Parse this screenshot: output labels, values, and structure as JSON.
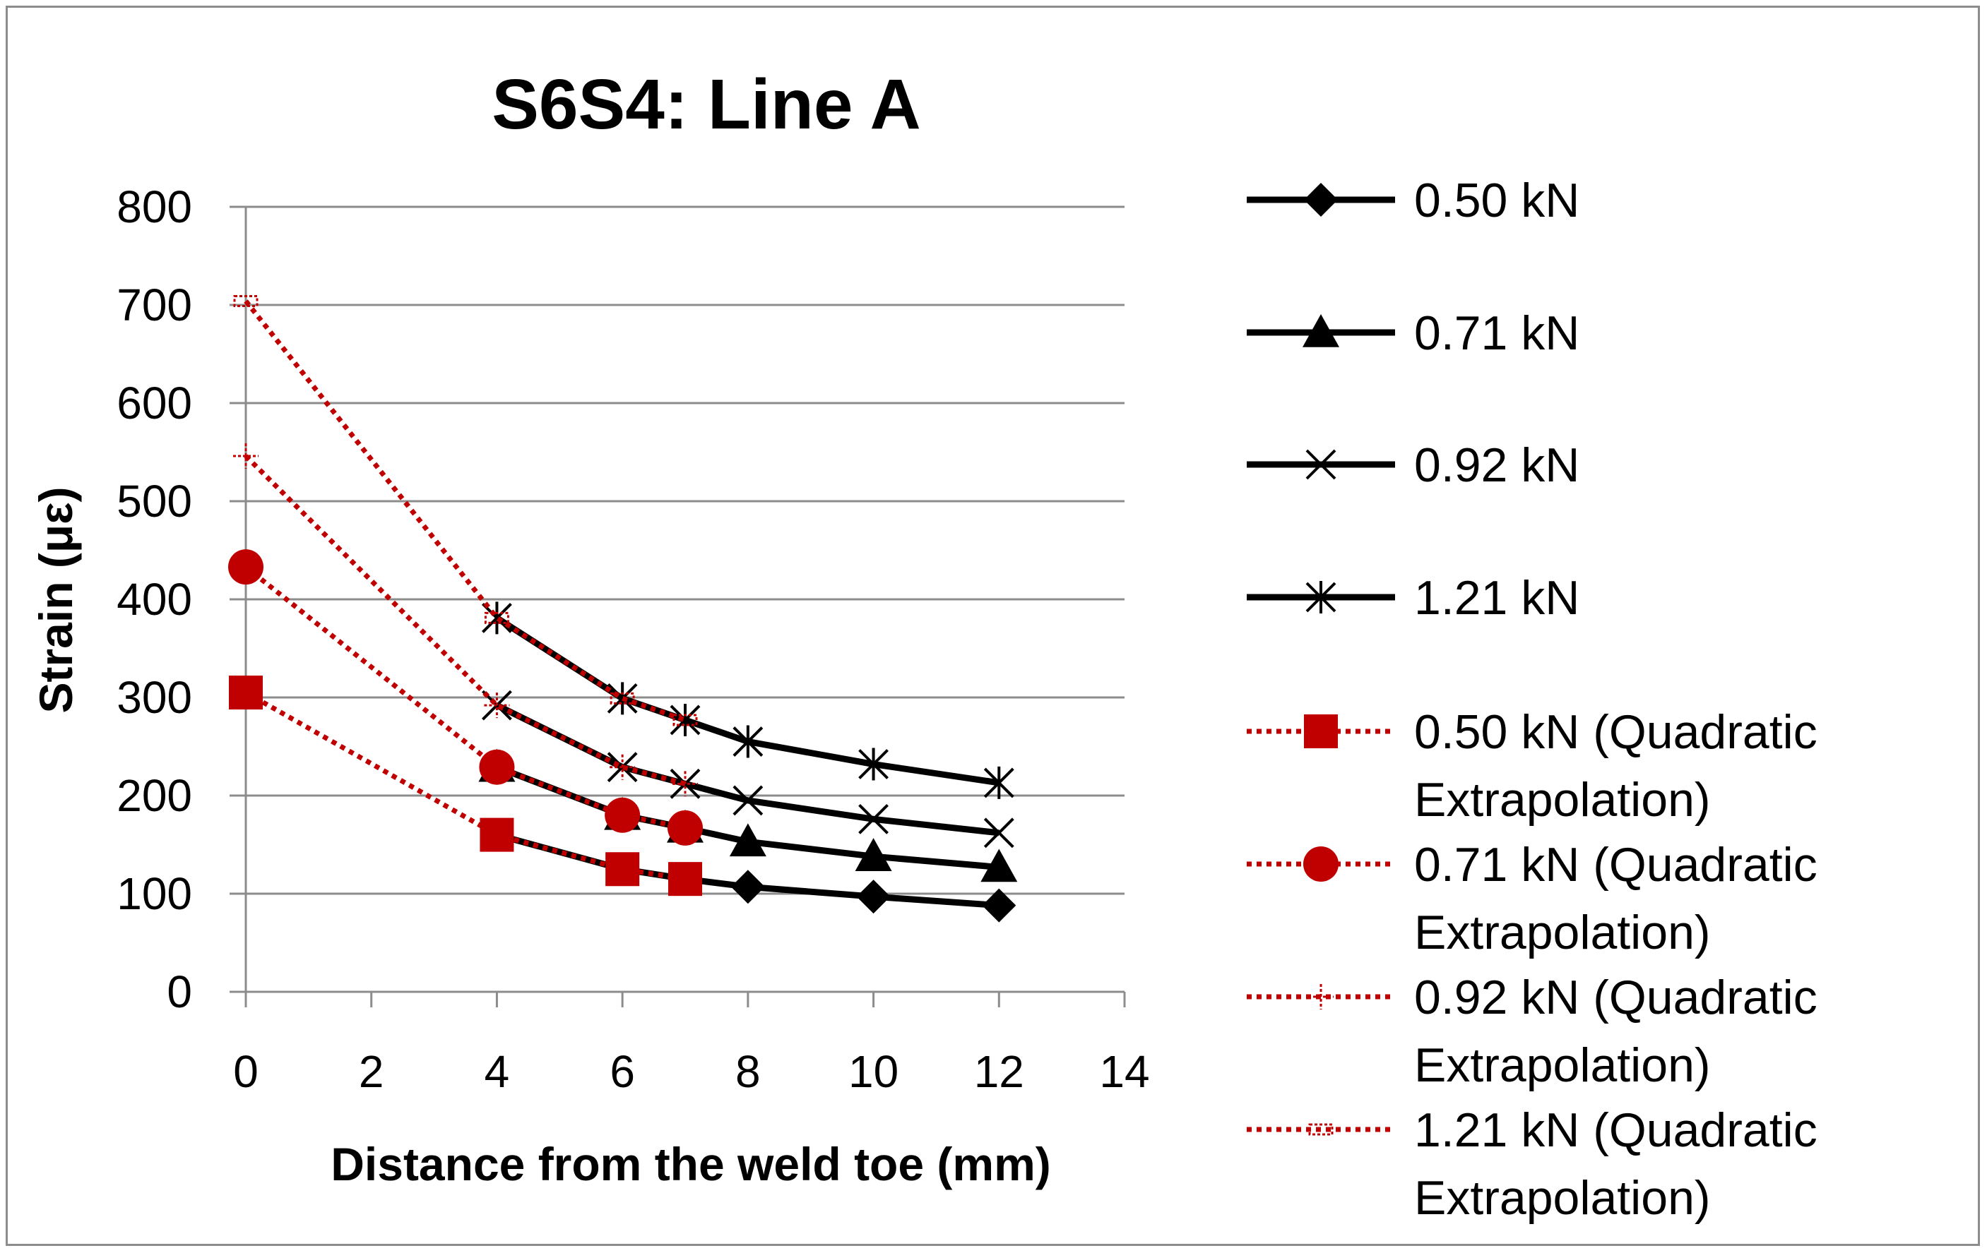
{
  "chart_data": {
    "type": "line",
    "title": "S6S4: Line A",
    "xlabel": "Distance from the weld toe (mm)",
    "ylabel": "Strain (με)",
    "xlim": [
      0,
      14
    ],
    "ylim": [
      0,
      800
    ],
    "xticks": [
      0,
      2,
      4,
      6,
      8,
      10,
      12,
      14
    ],
    "yticks": [
      0,
      100,
      200,
      300,
      400,
      500,
      600,
      700,
      800
    ],
    "grid": "horizontal",
    "legend_position": "right",
    "series": [
      {
        "name": "0.50 kN",
        "legend_lines": [
          "0.50 kN"
        ],
        "style": "solid",
        "color": "#000000",
        "marker": "diamond",
        "x": [
          4,
          6,
          7,
          8,
          10,
          12
        ],
        "y": [
          160,
          125,
          115,
          107,
          97,
          88
        ]
      },
      {
        "name": "0.71 kN",
        "legend_lines": [
          "0.71 kN"
        ],
        "style": "solid",
        "color": "#000000",
        "marker": "triangle",
        "x": [
          4,
          6,
          7,
          8,
          10,
          12
        ],
        "y": [
          229,
          180,
          167,
          153,
          138,
          127
        ]
      },
      {
        "name": "0.92 kN",
        "legend_lines": [
          "0.92 kN"
        ],
        "style": "solid",
        "color": "#000000",
        "marker": "x",
        "x": [
          4,
          6,
          7,
          8,
          10,
          12
        ],
        "y": [
          292,
          229,
          212,
          195,
          176,
          162
        ]
      },
      {
        "name": "1.21 kN",
        "legend_lines": [
          "1.21 kN"
        ],
        "style": "solid",
        "color": "#000000",
        "marker": "star",
        "x": [
          4,
          6,
          7,
          8,
          10,
          12
        ],
        "y": [
          381,
          299,
          277,
          255,
          232,
          213
        ]
      },
      {
        "name": "0.50 kN (Quadratic Extrapolation)",
        "legend_lines": [
          "0.50 kN (Quadratic",
          "Extrapolation)"
        ],
        "style": "dotted",
        "color": "#c00000",
        "marker": "square",
        "x": [
          0,
          4,
          6,
          7
        ],
        "y": [
          305,
          160,
          125,
          115
        ]
      },
      {
        "name": "0.71 kN (Quadratic Extrapolation)",
        "legend_lines": [
          "0.71 kN (Quadratic",
          "Extrapolation)"
        ],
        "style": "dotted",
        "color": "#c00000",
        "marker": "circle",
        "x": [
          0,
          4,
          6,
          7
        ],
        "y": [
          433,
          229,
          180,
          167
        ]
      },
      {
        "name": "0.92 kN (Quadratic Extrapolation)",
        "legend_lines": [
          "0.92 kN (Quadratic",
          "Extrapolation)"
        ],
        "style": "dotted",
        "color": "#c00000",
        "marker": "plus",
        "x": [
          0,
          4,
          6,
          7
        ],
        "y": [
          546,
          292,
          229,
          212
        ]
      },
      {
        "name": "1.21 kN (Quadratic Extrapolation)",
        "legend_lines": [
          "1.21 kN (Quadratic",
          "Extrapolation)"
        ],
        "style": "dotted",
        "color": "#c00000",
        "marker": "dash",
        "x": [
          0,
          4,
          6,
          7
        ],
        "y": [
          704,
          381,
          299,
          277
        ]
      }
    ]
  }
}
